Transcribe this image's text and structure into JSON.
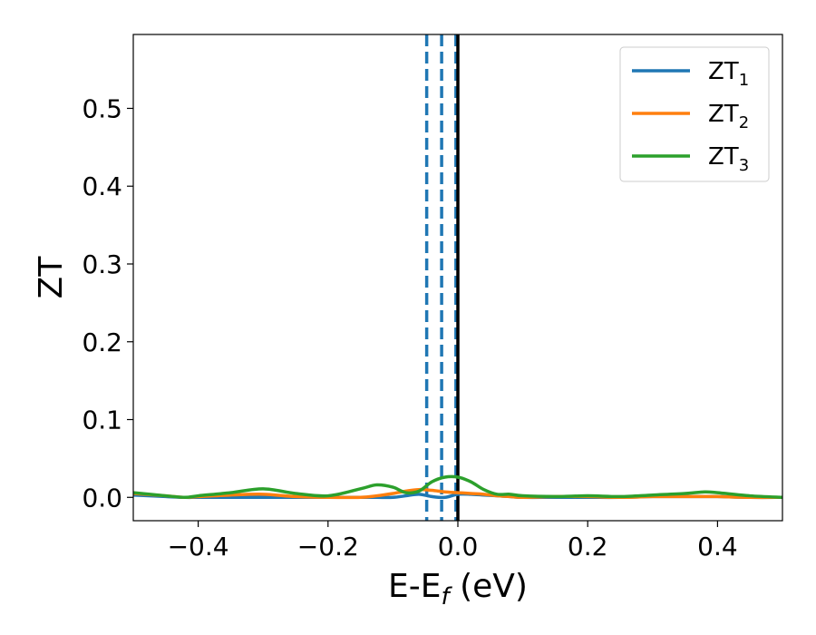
{
  "chart_data": {
    "type": "line",
    "xlabel": {
      "main": "E-E",
      "sub": "f",
      "suffix": " (eV)"
    },
    "ylabel": "ZT",
    "xlim": [
      -0.5,
      0.5
    ],
    "ylim": [
      -0.03,
      0.595
    ],
    "grid": false,
    "legend_position": "top-right",
    "x_ticks": [
      -0.4,
      -0.2,
      0.0,
      0.2,
      0.4
    ],
    "x_tick_labels": [
      "−0.4",
      "−0.2",
      "0.0",
      "0.2",
      "0.4"
    ],
    "y_ticks": [
      0.0,
      0.1,
      0.2,
      0.3,
      0.4,
      0.5
    ],
    "y_tick_labels": [
      "0.0",
      "0.1",
      "0.2",
      "0.3",
      "0.4",
      "0.5"
    ],
    "vertical_lines": [
      {
        "x": -0.048,
        "style": "dashed",
        "color": "#1f77b4"
      },
      {
        "x": -0.025,
        "style": "dashed",
        "color": "#1f77b4"
      },
      {
        "x": -0.003,
        "style": "dashed",
        "color": "#1f77b4"
      },
      {
        "x": 0.0,
        "style": "solid",
        "color": "#000000"
      }
    ],
    "x": [
      -0.5,
      -0.45,
      -0.42,
      -0.4,
      -0.35,
      -0.3,
      -0.25,
      -0.2,
      -0.15,
      -0.125,
      -0.1,
      -0.08,
      -0.06,
      -0.04,
      -0.02,
      0.0,
      0.02,
      0.04,
      0.06,
      0.08,
      0.1,
      0.15,
      0.2,
      0.25,
      0.3,
      0.35,
      0.38,
      0.4,
      0.45,
      0.5
    ],
    "series": [
      {
        "name": {
          "base": "ZT",
          "sub": "1"
        },
        "color": "#1f77b4",
        "values": [
          0.003,
          0.001,
          0.0,
          0.0,
          0.0,
          0.0,
          0.0,
          0.0,
          0.0,
          0.0,
          0.0,
          0.002,
          0.004,
          0.001,
          0.0,
          0.004,
          0.004,
          0.003,
          0.002,
          0.001,
          0.0,
          0.0,
          0.0,
          0.0,
          0.001,
          0.001,
          0.001,
          0.001,
          0.0,
          0.0
        ]
      },
      {
        "name": {
          "base": "ZT",
          "sub": "2"
        },
        "color": "#ff7f0e",
        "values": [
          0.005,
          0.002,
          0.0,
          0.001,
          0.003,
          0.004,
          0.001,
          0.0,
          0.0,
          0.002,
          0.005,
          0.008,
          0.01,
          0.009,
          0.007,
          0.006,
          0.005,
          0.004,
          0.002,
          0.001,
          0.0,
          0.001,
          0.001,
          0.0,
          0.001,
          0.001,
          0.001,
          0.001,
          0.0,
          0.0
        ]
      },
      {
        "name": {
          "base": "ZT",
          "sub": "3"
        },
        "color": "#2ca02c",
        "values": [
          0.006,
          0.002,
          0.0,
          0.002,
          0.006,
          0.011,
          0.005,
          0.002,
          0.011,
          0.016,
          0.013,
          0.006,
          0.008,
          0.02,
          0.026,
          0.026,
          0.02,
          0.01,
          0.004,
          0.004,
          0.002,
          0.001,
          0.002,
          0.001,
          0.003,
          0.005,
          0.007,
          0.006,
          0.002,
          0.0
        ]
      }
    ]
  }
}
